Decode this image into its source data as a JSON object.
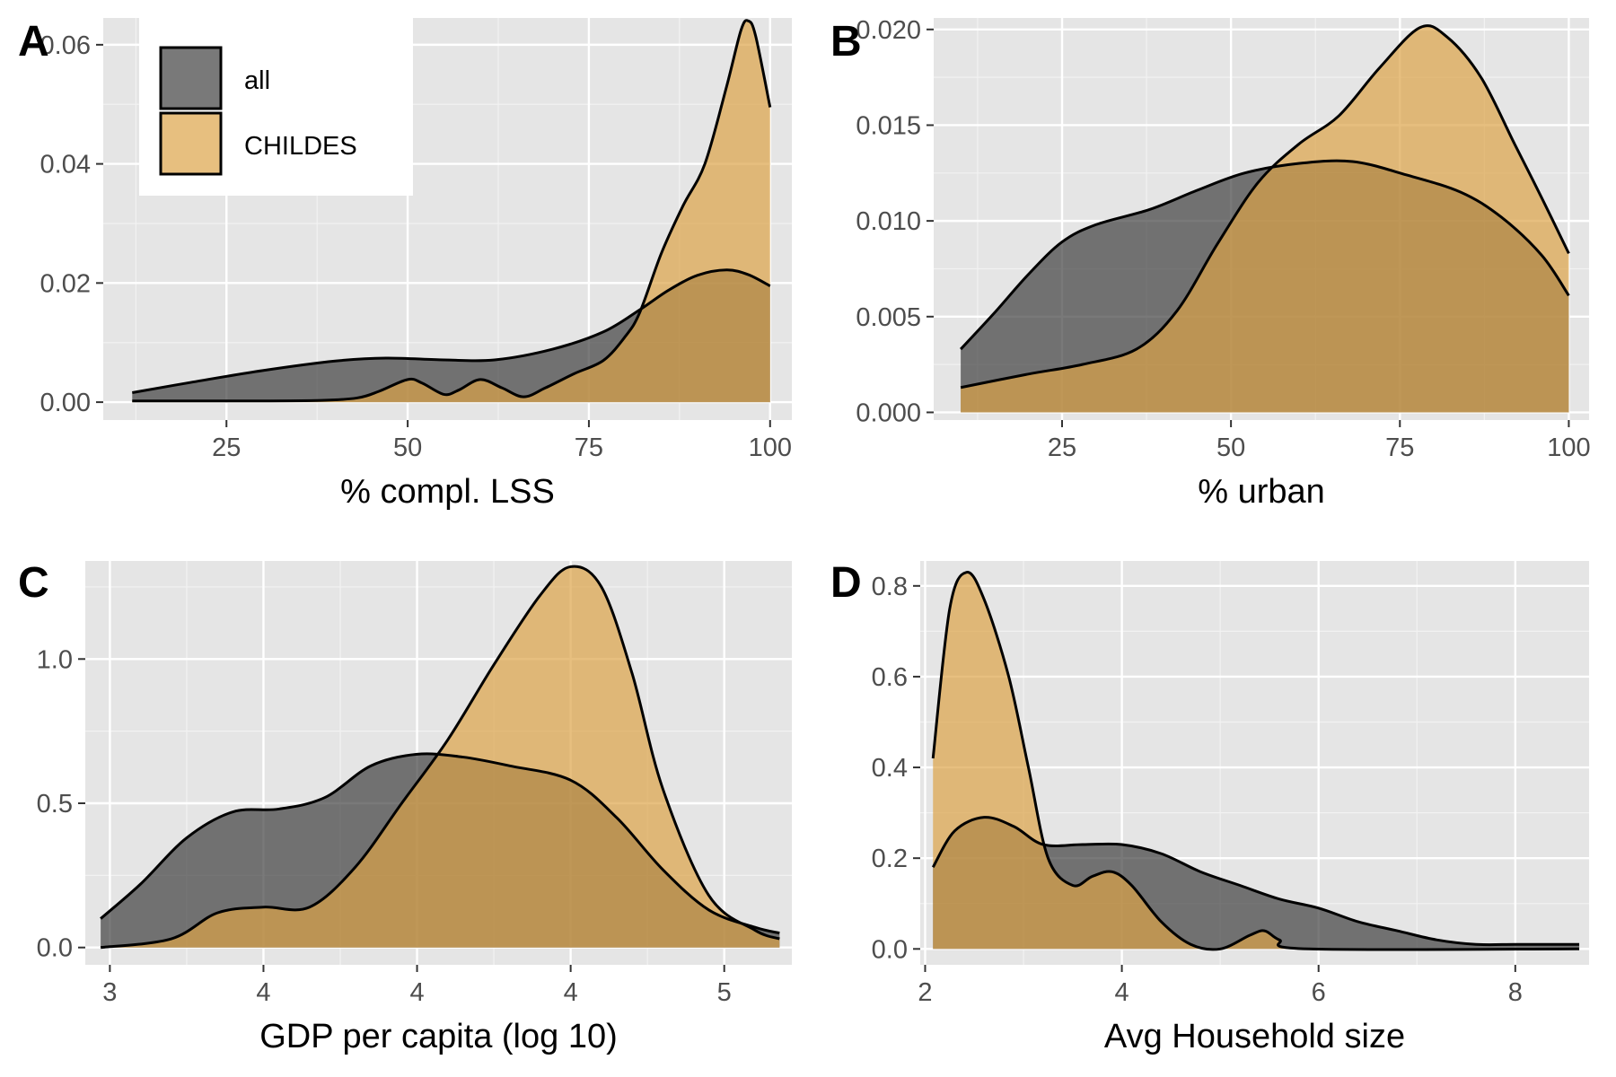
{
  "colors": {
    "all": "#404040",
    "CHILDES": "#dda448",
    "panel": "#e5e5e5"
  },
  "legend": {
    "placement": "inside-top-left-panel-A",
    "entries": [
      "all",
      "CHILDES"
    ]
  },
  "chart_data": [
    {
      "tag": "A",
      "type": "area",
      "xlabel": "% compl. LSS",
      "ylabel": "",
      "xlim": [
        8,
        103
      ],
      "ylim": [
        -0.003,
        0.0645
      ],
      "xticks": [
        25,
        50,
        75,
        100
      ],
      "xtick_labels": [
        "25",
        "50",
        "75",
        "100"
      ],
      "yticks": [
        0,
        0.02,
        0.04,
        0.06
      ],
      "ytick_labels": [
        "0.00",
        "0.02",
        "0.04",
        "0.06"
      ],
      "series": [
        {
          "name": "all",
          "points": [
            [
              12,
              0.0016
            ],
            [
              20,
              0.0033
            ],
            [
              30,
              0.0053
            ],
            [
              40,
              0.0069
            ],
            [
              47,
              0.0074
            ],
            [
              55,
              0.0071
            ],
            [
              62,
              0.0071
            ],
            [
              70,
              0.0089
            ],
            [
              77,
              0.0118
            ],
            [
              82,
              0.0155
            ],
            [
              86,
              0.0188
            ],
            [
              90,
              0.0213
            ],
            [
              94,
              0.0222
            ],
            [
              97,
              0.0214
            ],
            [
              100,
              0.0195
            ]
          ]
        },
        {
          "name": "CHILDES",
          "points": [
            [
              12,
              0.0002
            ],
            [
              28,
              0.0002
            ],
            [
              38,
              0.0003
            ],
            [
              43,
              0.0007
            ],
            [
              46,
              0.0018
            ],
            [
              50,
              0.0038
            ],
            [
              52,
              0.0032
            ],
            [
              55,
              0.0013
            ],
            [
              57,
              0.002
            ],
            [
              60,
              0.0038
            ],
            [
              63,
              0.0024
            ],
            [
              66,
              0.0009
            ],
            [
              69,
              0.0024
            ],
            [
              73,
              0.0048
            ],
            [
              77,
              0.007
            ],
            [
              80,
              0.011
            ],
            [
              82,
              0.015
            ],
            [
              85,
              0.025
            ],
            [
              88,
              0.033
            ],
            [
              91,
              0.04
            ],
            [
              94,
              0.053
            ],
            [
              96,
              0.0625
            ],
            [
              97,
              0.064
            ],
            [
              98,
              0.0615
            ],
            [
              100,
              0.0495
            ]
          ]
        }
      ]
    },
    {
      "tag": "B",
      "type": "area",
      "xlabel": "% urban",
      "ylabel": "",
      "xlim": [
        6,
        103
      ],
      "ylim": [
        -0.0004,
        0.0206
      ],
      "xticks": [
        25,
        50,
        75,
        100
      ],
      "xtick_labels": [
        "25",
        "50",
        "75",
        "100"
      ],
      "yticks": [
        0,
        0.005,
        0.01,
        0.015,
        0.02
      ],
      "ytick_labels": [
        "0.000",
        "0.005",
        "0.010",
        "0.015",
        "0.020"
      ],
      "series": [
        {
          "name": "all",
          "points": [
            [
              10,
              0.0033
            ],
            [
              15,
              0.0052
            ],
            [
              20,
              0.0072
            ],
            [
              25,
              0.0089
            ],
            [
              30,
              0.0098
            ],
            [
              38,
              0.0106
            ],
            [
              45,
              0.0116
            ],
            [
              52,
              0.0125
            ],
            [
              60,
              0.013
            ],
            [
              68,
              0.0131
            ],
            [
              76,
              0.0124
            ],
            [
              84,
              0.0115
            ],
            [
              90,
              0.0102
            ],
            [
              96,
              0.0082
            ],
            [
              100,
              0.0061
            ]
          ]
        },
        {
          "name": "CHILDES",
          "points": [
            [
              10,
              0.0013
            ],
            [
              20,
              0.002
            ],
            [
              28,
              0.0025
            ],
            [
              36,
              0.0033
            ],
            [
              42,
              0.0053
            ],
            [
              48,
              0.0088
            ],
            [
              54,
              0.012
            ],
            [
              60,
              0.014
            ],
            [
              66,
              0.0155
            ],
            [
              72,
              0.018
            ],
            [
              78,
              0.0201
            ],
            [
              82,
              0.0196
            ],
            [
              87,
              0.0175
            ],
            [
              92,
              0.014
            ],
            [
              96,
              0.0112
            ],
            [
              100,
              0.0083
            ]
          ]
        }
      ]
    },
    {
      "tag": "C",
      "type": "area",
      "xlabel": "GDP per capita (log 10)",
      "ylabel": "",
      "xlim": [
        2.92,
        5.22
      ],
      "ylim": [
        -0.06,
        1.34
      ],
      "xticks": [
        3,
        3.5,
        4,
        4.5,
        5
      ],
      "xtick_labels": [
        "3",
        "4",
        "4",
        "4",
        "5"
      ],
      "yticks": [
        0,
        0.5,
        1
      ],
      "ytick_labels": [
        "0.0",
        "0.5",
        "1.0"
      ],
      "series": [
        {
          "name": "all",
          "points": [
            [
              2.97,
              0.1
            ],
            [
              3.1,
              0.22
            ],
            [
              3.25,
              0.38
            ],
            [
              3.4,
              0.47
            ],
            [
              3.55,
              0.48
            ],
            [
              3.7,
              0.52
            ],
            [
              3.85,
              0.63
            ],
            [
              4.0,
              0.67
            ],
            [
              4.15,
              0.66
            ],
            [
              4.3,
              0.63
            ],
            [
              4.5,
              0.58
            ],
            [
              4.65,
              0.45
            ],
            [
              4.8,
              0.27
            ],
            [
              4.95,
              0.13
            ],
            [
              5.1,
              0.07
            ],
            [
              5.18,
              0.05
            ]
          ]
        },
        {
          "name": "CHILDES",
          "points": [
            [
              2.97,
              0.0
            ],
            [
              3.2,
              0.03
            ],
            [
              3.35,
              0.12
            ],
            [
              3.5,
              0.14
            ],
            [
              3.65,
              0.14
            ],
            [
              3.8,
              0.28
            ],
            [
              3.95,
              0.5
            ],
            [
              4.1,
              0.72
            ],
            [
              4.25,
              0.98
            ],
            [
              4.4,
              1.22
            ],
            [
              4.5,
              1.32
            ],
            [
              4.6,
              1.25
            ],
            [
              4.7,
              0.95
            ],
            [
              4.8,
              0.55
            ],
            [
              4.95,
              0.18
            ],
            [
              5.1,
              0.06
            ],
            [
              5.18,
              0.03
            ]
          ]
        }
      ]
    },
    {
      "tag": "D",
      "type": "area",
      "xlabel": "Avg Household size",
      "ylabel": "",
      "xlim": [
        1.95,
        8.75
      ],
      "ylim": [
        -0.035,
        0.855
      ],
      "xticks": [
        2,
        4,
        6,
        8
      ],
      "xtick_labels": [
        "2",
        "4",
        "6",
        "8"
      ],
      "yticks": [
        0,
        0.2,
        0.4,
        0.6,
        0.8
      ],
      "ytick_labels": [
        "0.0",
        "0.2",
        "0.4",
        "0.6",
        "0.8"
      ],
      "series": [
        {
          "name": "all",
          "points": [
            [
              2.08,
              0.18
            ],
            [
              2.3,
              0.26
            ],
            [
              2.6,
              0.29
            ],
            [
              2.9,
              0.27
            ],
            [
              3.2,
              0.23
            ],
            [
              3.6,
              0.23
            ],
            [
              4.0,
              0.23
            ],
            [
              4.4,
              0.21
            ],
            [
              4.8,
              0.17
            ],
            [
              5.2,
              0.14
            ],
            [
              5.6,
              0.11
            ],
            [
              6.0,
              0.09
            ],
            [
              6.4,
              0.06
            ],
            [
              6.8,
              0.04
            ],
            [
              7.2,
              0.02
            ],
            [
              7.6,
              0.01
            ],
            [
              8.0,
              0.01
            ],
            [
              8.4,
              0.01
            ],
            [
              8.65,
              0.01
            ]
          ]
        },
        {
          "name": "CHILDES",
          "points": [
            [
              2.08,
              0.42
            ],
            [
              2.25,
              0.75
            ],
            [
              2.42,
              0.83
            ],
            [
              2.6,
              0.77
            ],
            [
              2.85,
              0.6
            ],
            [
              3.05,
              0.4
            ],
            [
              3.25,
              0.2
            ],
            [
              3.5,
              0.14
            ],
            [
              3.7,
              0.16
            ],
            [
              3.9,
              0.17
            ],
            [
              4.1,
              0.14
            ],
            [
              4.4,
              0.06
            ],
            [
              4.7,
              0.01
            ],
            [
              5.0,
              0.0
            ],
            [
              5.3,
              0.03
            ],
            [
              5.45,
              0.04
            ],
            [
              5.6,
              0.02
            ],
            [
              5.9,
              0.0
            ],
            [
              8.65,
              0.0
            ]
          ]
        }
      ]
    }
  ]
}
